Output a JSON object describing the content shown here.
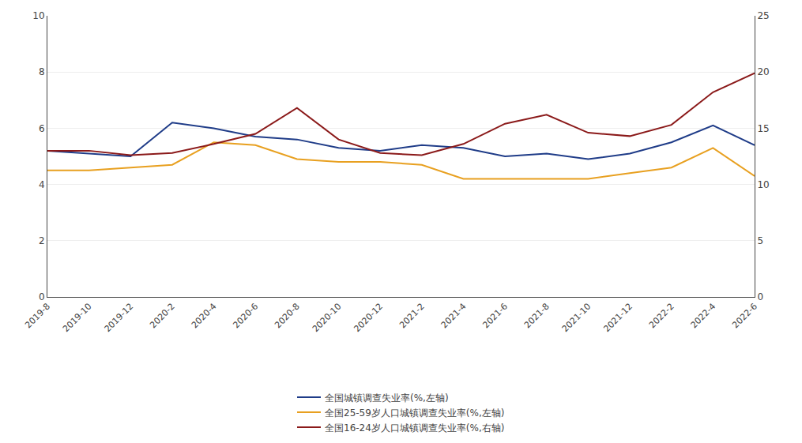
{
  "chart_data": {
    "type": "line",
    "categories": [
      "2019-8",
      "2019-10",
      "2019-12",
      "2020-2",
      "2020-4",
      "2020-6",
      "2020-8",
      "2020-10",
      "2020-12",
      "2021-2",
      "2021-4",
      "2021-6",
      "2021-8",
      "2021-10",
      "2021-12",
      "2022-2",
      "2022-4",
      "2022-6"
    ],
    "series": [
      {
        "name": "全国城镇调查失业率(%,左轴)",
        "color": "#1F3C88",
        "values": [
          5.2,
          5.1,
          5.0,
          6.2,
          6.0,
          5.7,
          5.6,
          5.3,
          5.2,
          5.4,
          5.3,
          5.0,
          5.1,
          4.9,
          5.1,
          5.5,
          6.1,
          5.4
        ]
      },
      {
        "name": "全国25-59岁人口城镇调查失业率(%,左轴)",
        "color": "#E8A020",
        "values": [
          4.5,
          4.5,
          4.6,
          4.7,
          5.5,
          5.4,
          4.9,
          4.8,
          4.8,
          4.7,
          4.2,
          4.2,
          4.2,
          4.2,
          4.4,
          4.6,
          5.3,
          4.3
        ]
      },
      {
        "name": "全国16-24岁人口城镇调查失业率(%,右轴)",
        "color": "#8B1A1A",
        "axis": "y2",
        "values": [
          13.0,
          13.0,
          12.6,
          12.8,
          13.6,
          14.5,
          16.8,
          14.0,
          12.8,
          12.6,
          13.6,
          15.4,
          16.2,
          14.6,
          14.3,
          15.3,
          18.2,
          19.9
        ]
      }
    ],
    "ylim": [
      0,
      10
    ],
    "yticks": [
      0,
      2,
      4,
      6,
      8,
      10
    ],
    "y2lim": [
      0,
      25
    ],
    "y2ticks": [
      0,
      5,
      10,
      15,
      20,
      25
    ],
    "grid": true,
    "legend": "bottom"
  }
}
